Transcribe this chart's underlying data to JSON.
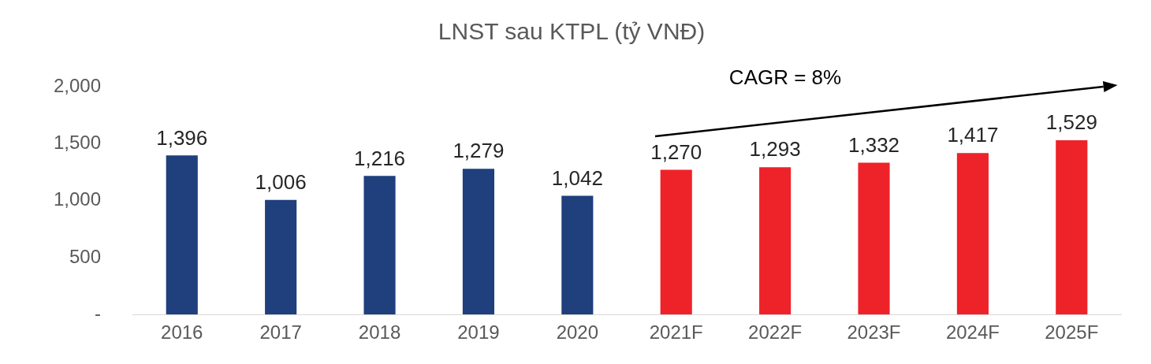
{
  "chart_data": {
    "type": "bar",
    "title": "LNST sau KTPL (tỷ VNĐ)",
    "categories": [
      "2016",
      "2017",
      "2018",
      "2019",
      "2020",
      "2021F",
      "2022F",
      "2023F",
      "2024F",
      "2025F"
    ],
    "values": [
      1396,
      1006,
      1216,
      1279,
      1042,
      1270,
      1293,
      1332,
      1417,
      1529
    ],
    "colors": [
      "#1f3f7d",
      "#1f3f7d",
      "#1f3f7d",
      "#1f3f7d",
      "#1f3f7d",
      "#ee2229",
      "#ee2229",
      "#ee2229",
      "#ee2229",
      "#ee2229"
    ],
    "ylim": [
      0,
      2000
    ],
    "yticks": [
      {
        "value": 0,
        "label": "-"
      },
      {
        "value": 500,
        "label": "500"
      },
      {
        "value": 1000,
        "label": "1,000"
      },
      {
        "value": 1500,
        "label": "1,500"
      },
      {
        "value": 2000,
        "label": "2,000"
      }
    ],
    "value_labels": [
      "1,396",
      "1,006",
      "1,216",
      "1,279",
      "1,042",
      "1,270",
      "1,293",
      "1,332",
      "1,417",
      "1,529"
    ],
    "grid": false,
    "legend": false,
    "annotations": [
      "CAGR = 8%"
    ]
  }
}
